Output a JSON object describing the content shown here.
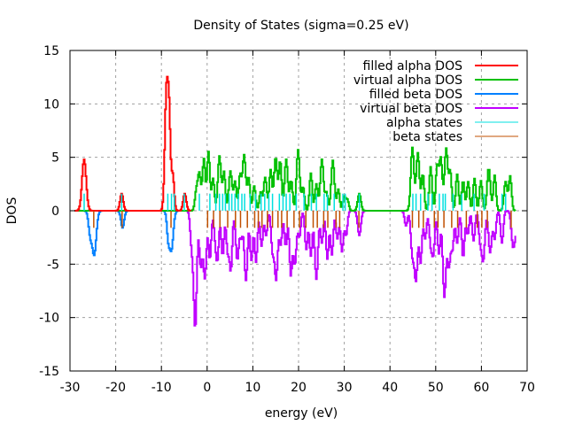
{
  "chart_data": {
    "type": "line",
    "title": "Density of States (sigma=0.25 eV)",
    "xlabel": "energy (eV)",
    "ylabel": "DOS",
    "xlim": [
      -30,
      70
    ],
    "ylim": [
      -15,
      15
    ],
    "xticks": [
      "-30",
      "-20",
      "-10",
      "0",
      "10",
      "20",
      "30",
      "40",
      "50",
      "60",
      "70"
    ],
    "yticks": [
      "15",
      "10",
      "5",
      "0",
      "-5",
      "-10",
      "-15"
    ],
    "xtick_values": [
      -30,
      -20,
      -10,
      0,
      10,
      20,
      30,
      40,
      50,
      60,
      70
    ],
    "ytick_values": [
      15,
      10,
      5,
      0,
      -5,
      -10,
      -15
    ],
    "grid": true,
    "legend_position": "top-right",
    "series": [
      {
        "name": "filled alpha DOS",
        "color": "#ff0000",
        "peaks": [
          [
            -27.0,
            4.8,
            0.45
          ],
          [
            -18.8,
            1.6,
            0.35
          ],
          [
            -9.0,
            10.9,
            0.35
          ],
          [
            -8.4,
            8.0,
            0.3
          ],
          [
            -7.6,
            3.3,
            0.3
          ],
          [
            -5.0,
            1.6,
            0.35
          ]
        ]
      },
      {
        "name": "virtual alpha DOS",
        "color": "#00c000",
        "peaks": [
          [
            -1.8,
            3.5,
            0.35
          ],
          [
            -2.5,
            1.6,
            0.3
          ],
          [
            -0.8,
            4.8,
            0.3
          ],
          [
            0.2,
            5.5,
            0.3
          ],
          [
            1.2,
            3.0,
            0.3
          ],
          [
            2.6,
            5.1,
            0.35
          ],
          [
            3.6,
            3.6,
            0.3
          ],
          [
            5.0,
            3.7,
            0.35
          ],
          [
            6.0,
            2.7,
            0.3
          ],
          [
            7.1,
            3.3,
            0.3
          ],
          [
            8.0,
            5.2,
            0.35
          ],
          [
            9.0,
            3.0,
            0.3
          ],
          [
            10.2,
            2.3,
            0.3
          ],
          [
            11.6,
            1.7,
            0.3
          ],
          [
            12.6,
            3.1,
            0.35
          ],
          [
            13.8,
            3.8,
            0.3
          ],
          [
            14.9,
            5.0,
            0.35
          ],
          [
            15.9,
            4.6,
            0.3
          ],
          [
            17.2,
            4.8,
            0.35
          ],
          [
            18.3,
            2.8,
            0.3
          ],
          [
            19.8,
            5.7,
            0.35
          ],
          [
            20.9,
            2.2,
            0.3
          ],
          [
            22.6,
            3.5,
            0.3
          ],
          [
            23.8,
            2.5,
            0.3
          ],
          [
            25.0,
            4.8,
            0.35
          ],
          [
            26.0,
            1.7,
            0.3
          ],
          [
            27.4,
            4.7,
            0.35
          ],
          [
            28.6,
            2.0,
            0.3
          ],
          [
            29.9,
            1.3,
            0.3
          ],
          [
            30.6,
            1.0,
            0.3
          ],
          [
            33.2,
            1.6,
            0.35
          ],
          [
            44.8,
            5.9,
            0.35
          ],
          [
            46.0,
            5.4,
            0.35
          ],
          [
            47.1,
            3.4,
            0.3
          ],
          [
            48.8,
            4.1,
            0.3
          ],
          [
            50.2,
            4.0,
            0.3
          ],
          [
            51.0,
            4.9,
            0.35
          ],
          [
            52.2,
            5.8,
            0.35
          ],
          [
            53.1,
            3.6,
            0.3
          ],
          [
            54.6,
            3.4,
            0.3
          ],
          [
            55.9,
            2.8,
            0.3
          ],
          [
            57.0,
            2.7,
            0.3
          ],
          [
            58.4,
            3.0,
            0.3
          ],
          [
            59.8,
            2.8,
            0.3
          ],
          [
            61.5,
            4.0,
            0.35
          ],
          [
            62.8,
            3.3,
            0.3
          ],
          [
            65.2,
            2.7,
            0.35
          ],
          [
            66.2,
            3.2,
            0.3
          ]
        ]
      },
      {
        "name": "filled beta DOS",
        "color": "#0080ff",
        "peaks": [
          [
            -24.8,
            -4.1,
            0.45
          ],
          [
            -25.7,
            -2.0,
            0.35
          ],
          [
            -18.6,
            -1.6,
            0.35
          ],
          [
            -7.9,
            -3.6,
            0.4
          ],
          [
            -8.6,
            -2.3,
            0.3
          ]
        ]
      },
      {
        "name": "virtual beta DOS",
        "color": "#c000ff",
        "peaks": [
          [
            -2.7,
            -11.0,
            0.35
          ],
          [
            -3.5,
            -3.0,
            0.3
          ],
          [
            -1.5,
            -5.1,
            0.3
          ],
          [
            -0.6,
            -6.3,
            0.35
          ],
          [
            0.5,
            -4.5,
            0.3
          ],
          [
            1.7,
            -2.4,
            0.3
          ],
          [
            2.2,
            -4.0,
            0.3
          ],
          [
            3.3,
            -4.2,
            0.3
          ],
          [
            4.4,
            -3.7,
            0.3
          ],
          [
            5.1,
            -5.4,
            0.3
          ],
          [
            6.5,
            -4.6,
            0.35
          ],
          [
            7.4,
            -2.4,
            0.3
          ],
          [
            8.4,
            -6.5,
            0.35
          ],
          [
            9.6,
            -4.6,
            0.3
          ],
          [
            10.6,
            -4.8,
            0.3
          ],
          [
            11.8,
            -3.3,
            0.3
          ],
          [
            12.8,
            -2.3,
            0.3
          ],
          [
            14.2,
            -3.6,
            0.3
          ],
          [
            15.0,
            -6.4,
            0.35
          ],
          [
            16.0,
            -3.1,
            0.3
          ],
          [
            17.1,
            -3.3,
            0.3
          ],
          [
            18.2,
            -5.9,
            0.3
          ],
          [
            19.1,
            -5.0,
            0.35
          ],
          [
            20.1,
            -2.4,
            0.3
          ],
          [
            21.6,
            -3.6,
            0.3
          ],
          [
            22.6,
            -4.2,
            0.3
          ],
          [
            23.8,
            -6.4,
            0.35
          ],
          [
            25.0,
            -3.0,
            0.3
          ],
          [
            26.2,
            -4.5,
            0.3
          ],
          [
            27.2,
            -4.1,
            0.3
          ],
          [
            28.4,
            -2.6,
            0.3
          ],
          [
            29.4,
            -3.8,
            0.3
          ],
          [
            30.3,
            -2.3,
            0.3
          ],
          [
            33.2,
            -2.3,
            0.35
          ],
          [
            43.4,
            -1.4,
            0.3
          ],
          [
            44.8,
            -4.0,
            0.35
          ],
          [
            45.6,
            -6.3,
            0.35
          ],
          [
            46.6,
            -4.8,
            0.3
          ],
          [
            47.6,
            -2.6,
            0.3
          ],
          [
            48.8,
            -3.0,
            0.3
          ],
          [
            49.4,
            -3.8,
            0.3
          ],
          [
            50.6,
            -4.0,
            0.3
          ],
          [
            51.8,
            -8.0,
            0.35
          ],
          [
            52.8,
            -5.1,
            0.35
          ],
          [
            53.6,
            -3.3,
            0.3
          ],
          [
            54.6,
            -3.0,
            0.3
          ],
          [
            55.9,
            -4.4,
            0.3
          ],
          [
            56.9,
            -2.2,
            0.3
          ],
          [
            58.2,
            -2.8,
            0.3
          ],
          [
            59.6,
            -2.5,
            0.3
          ],
          [
            60.3,
            -4.6,
            0.35
          ],
          [
            61.8,
            -3.9,
            0.35
          ],
          [
            62.8,
            -2.6,
            0.3
          ],
          [
            64.4,
            -3.0,
            0.3
          ],
          [
            66.8,
            -3.2,
            0.35
          ],
          [
            67.4,
            -1.6,
            0.3
          ]
        ]
      },
      {
        "name": "alpha states",
        "color": "#00e0e0",
        "sticks": [
          -26.9,
          -18.7,
          -8.6,
          -7.8,
          -7.2,
          -5.0,
          -1.7,
          0.6,
          1.9,
          2.7,
          3.4,
          4.0,
          4.8,
          5.4,
          6.1,
          6.8,
          7.6,
          8.2,
          9.4,
          10.6,
          11.8,
          12.6,
          13.5,
          14.3,
          15.8,
          16.6,
          17.3,
          18.1,
          19.5,
          21.2,
          22.8,
          23.9,
          25.6,
          26.3,
          27.8,
          29.7,
          30.2,
          33.3,
          45.0,
          45.7,
          46.7,
          48.3,
          49.2,
          50.8,
          51.6,
          52.1,
          53.8,
          55.7,
          58.4,
          60.6,
          64.5,
          65.3
        ]
      },
      {
        "name": "beta states",
        "color": "#c05000",
        "sticks": [
          -24.8,
          -18.6,
          -7.9,
          0.1,
          1.4,
          2.8,
          4.5,
          6.2,
          7.3,
          8.8,
          10.4,
          11.2,
          12.0,
          13.2,
          14.3,
          15.5,
          16.3,
          17.5,
          19.0,
          20.2,
          21.6,
          23.2,
          24.1,
          25.5,
          26.4,
          28.2,
          29.0,
          33.2,
          44.9,
          46.3,
          47.3,
          49.7,
          50.5,
          51.8,
          53.5,
          54.8,
          56.7,
          59.1,
          60.1,
          61.3,
          66.5
        ]
      }
    ]
  }
}
